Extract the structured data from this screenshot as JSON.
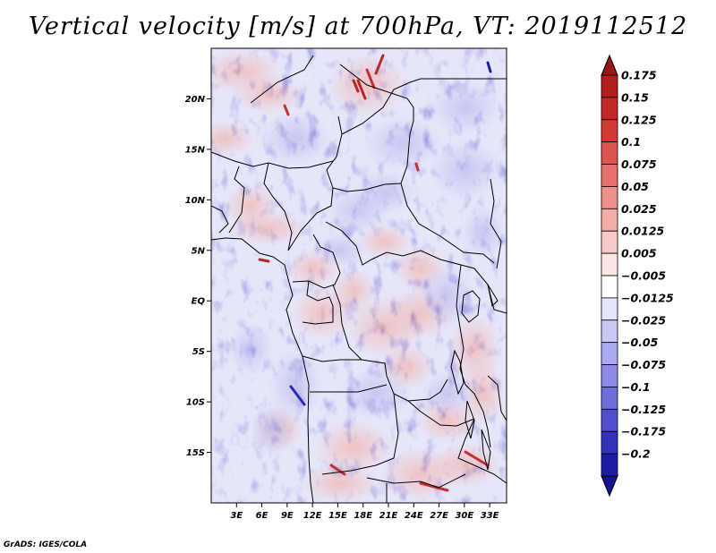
{
  "title": "Vertical velocity [m/s] at 700hPa, VT: 2019112512",
  "credit": "GrADS: IGES/COLA",
  "map": {
    "lon_range": [
      0,
      35
    ],
    "lat_range": [
      -20,
      25
    ],
    "lat_ticks": [
      {
        "value": 20,
        "label": "20N"
      },
      {
        "value": 15,
        "label": "15N"
      },
      {
        "value": 10,
        "label": "10N"
      },
      {
        "value": 5,
        "label": "5N"
      },
      {
        "value": 0,
        "label": "EQ"
      },
      {
        "value": -5,
        "label": "5S"
      },
      {
        "value": -10,
        "label": "10S"
      },
      {
        "value": -15,
        "label": "15S"
      }
    ],
    "lon_ticks": [
      {
        "value": 3,
        "label": "3E"
      },
      {
        "value": 6,
        "label": "6E"
      },
      {
        "value": 9,
        "label": "9E"
      },
      {
        "value": 12,
        "label": "12E"
      },
      {
        "value": 15,
        "label": "15E"
      },
      {
        "value": 18,
        "label": "18E"
      },
      {
        "value": 21,
        "label": "21E"
      },
      {
        "value": 24,
        "label": "24E"
      },
      {
        "value": 27,
        "label": "27E"
      },
      {
        "value": 30,
        "label": "30E"
      },
      {
        "value": 33,
        "label": "33E"
      }
    ]
  },
  "colorbar": {
    "levels": [
      {
        "label": "0.175",
        "color": "#b01e1e"
      },
      {
        "label": "0.15",
        "color": "#c22a28"
      },
      {
        "label": "0.125",
        "color": "#d23a36"
      },
      {
        "label": "0.1",
        "color": "#dd5450"
      },
      {
        "label": "0.075",
        "color": "#e6716c"
      },
      {
        "label": "0.05",
        "color": "#ed8f8a"
      },
      {
        "label": "0.025",
        "color": "#f3aeaa"
      },
      {
        "label": "0.0125",
        "color": "#f8cac7"
      },
      {
        "label": "0.005",
        "color": "#fce6e4"
      },
      {
        "label": "−0.005",
        "color": "#ffffff"
      },
      {
        "label": "−0.0125",
        "color": "#e4e4fb"
      },
      {
        "label": "−0.025",
        "color": "#c8c8f6"
      },
      {
        "label": "−0.05",
        "color": "#aaaaf0"
      },
      {
        "label": "−0.075",
        "color": "#8c8ce8"
      },
      {
        "label": "−0.1",
        "color": "#6e6edd"
      },
      {
        "label": "−0.125",
        "color": "#5050cf"
      },
      {
        "label": "−0.175",
        "color": "#3232bd"
      },
      {
        "label": "−0.2",
        "color": "#1c1ca6"
      }
    ],
    "top_arrow_color": "#9a1515",
    "bottom_arrow_color": "#14148f"
  }
}
